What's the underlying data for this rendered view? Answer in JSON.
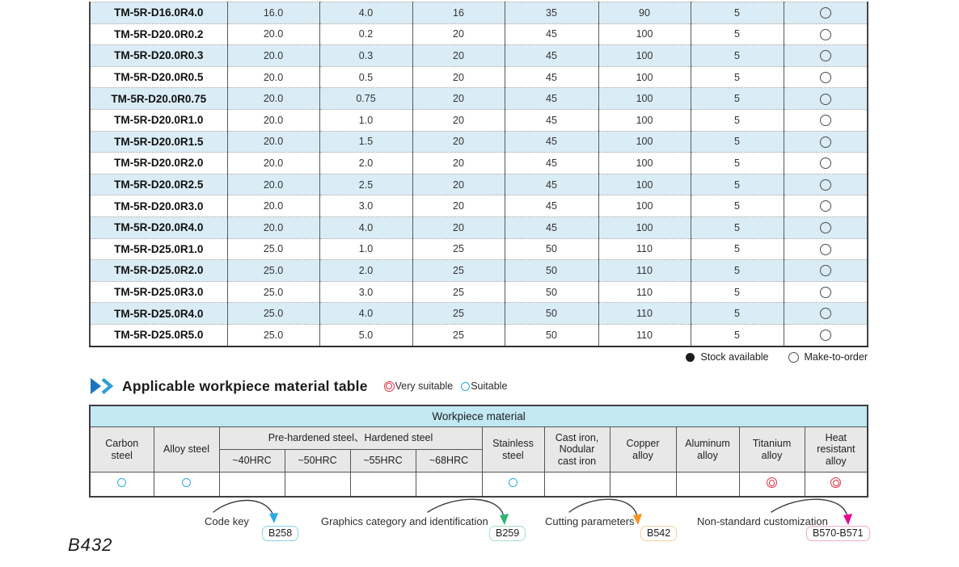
{
  "colors": {
    "row_alt_blue": "#daecf6",
    "header_cyan": "#c2e8f4",
    "header_gray": "#e8e8e8",
    "suitable_blue": "#29abe2",
    "very_suitable_red": "#e62e44"
  },
  "spec_table": {
    "rows": [
      {
        "cells": [
          "TM-5R-D16.0R4.0",
          "16.0",
          "4.0",
          "16",
          "35",
          "90",
          "5"
        ],
        "stock": "make-to-order"
      },
      {
        "cells": [
          "TM-5R-D20.0R0.2",
          "20.0",
          "0.2",
          "20",
          "45",
          "100",
          "5"
        ],
        "stock": "make-to-order"
      },
      {
        "cells": [
          "TM-5R-D20.0R0.3",
          "20.0",
          "0.3",
          "20",
          "45",
          "100",
          "5"
        ],
        "stock": "make-to-order"
      },
      {
        "cells": [
          "TM-5R-D20.0R0.5",
          "20.0",
          "0.5",
          "20",
          "45",
          "100",
          "5"
        ],
        "stock": "make-to-order"
      },
      {
        "cells": [
          "TM-5R-D20.0R0.75",
          "20.0",
          "0.75",
          "20",
          "45",
          "100",
          "5"
        ],
        "stock": "make-to-order"
      },
      {
        "cells": [
          "TM-5R-D20.0R1.0",
          "20.0",
          "1.0",
          "20",
          "45",
          "100",
          "5"
        ],
        "stock": "make-to-order"
      },
      {
        "cells": [
          "TM-5R-D20.0R1.5",
          "20.0",
          "1.5",
          "20",
          "45",
          "100",
          "5"
        ],
        "stock": "make-to-order"
      },
      {
        "cells": [
          "TM-5R-D20.0R2.0",
          "20.0",
          "2.0",
          "20",
          "45",
          "100",
          "5"
        ],
        "stock": "make-to-order"
      },
      {
        "cells": [
          "TM-5R-D20.0R2.5",
          "20.0",
          "2.5",
          "20",
          "45",
          "100",
          "5"
        ],
        "stock": "make-to-order"
      },
      {
        "cells": [
          "TM-5R-D20.0R3.0",
          "20.0",
          "3.0",
          "20",
          "45",
          "100",
          "5"
        ],
        "stock": "make-to-order"
      },
      {
        "cells": [
          "TM-5R-D20.0R4.0",
          "20.0",
          "4.0",
          "20",
          "45",
          "100",
          "5"
        ],
        "stock": "make-to-order"
      },
      {
        "cells": [
          "TM-5R-D25.0R1.0",
          "25.0",
          "1.0",
          "25",
          "50",
          "110",
          "5"
        ],
        "stock": "make-to-order"
      },
      {
        "cells": [
          "TM-5R-D25.0R2.0",
          "25.0",
          "2.0",
          "25",
          "50",
          "110",
          "5"
        ],
        "stock": "make-to-order"
      },
      {
        "cells": [
          "TM-5R-D25.0R3.0",
          "25.0",
          "3.0",
          "25",
          "50",
          "110",
          "5"
        ],
        "stock": "make-to-order"
      },
      {
        "cells": [
          "TM-5R-D25.0R4.0",
          "25.0",
          "4.0",
          "25",
          "50",
          "110",
          "5"
        ],
        "stock": "make-to-order"
      },
      {
        "cells": [
          "TM-5R-D25.0R5.0",
          "25.0",
          "5.0",
          "25",
          "50",
          "110",
          "5"
        ],
        "stock": "make-to-order"
      }
    ]
  },
  "legend": {
    "stock_available": "Stock available",
    "make_to_order": "Make-to-order"
  },
  "section": {
    "title": "Applicable workpiece material table",
    "very_suitable_label": "Very suitable",
    "suitable_label": "Suitable"
  },
  "workpiece_table": {
    "title": "Workpiece material",
    "group_header": "Pre-hardened steel、Hardened steel",
    "headers": [
      "Carbon\nsteel",
      "Alloy steel",
      "~40HRC",
      "~50HRC",
      "~55HRC",
      "~68HRC",
      "Stainless\nsteel",
      "Cast iron,\nNodular\ncast iron",
      "Copper\nalloy",
      "Aluminum\nalloy",
      "Titanium\nalloy",
      "Heat\nresistant\nalloy"
    ],
    "suitability": [
      "suitable",
      "suitable",
      "",
      "",
      "",
      "",
      "suitable",
      "",
      "",
      "",
      "very_suitable",
      "very_suitable"
    ]
  },
  "footer_refs": [
    {
      "label": "Code key",
      "badge": "B258",
      "arrow_color": "#29abe2",
      "badge_border": "#86d2ee"
    },
    {
      "label": "Graphics category and identification",
      "badge": "B259",
      "arrow_color": "#2bb673",
      "badge_border": "#a5dec2"
    },
    {
      "label": "Cutting parameters",
      "badge": "B542",
      "arrow_color": "#f7941d",
      "badge_border": "#f6cf9a"
    },
    {
      "label": "Non-standard customization",
      "badge": "B570-B571",
      "arrow_color": "#ec008c",
      "badge_border": "#f3abca"
    }
  ],
  "page_number": "B432"
}
